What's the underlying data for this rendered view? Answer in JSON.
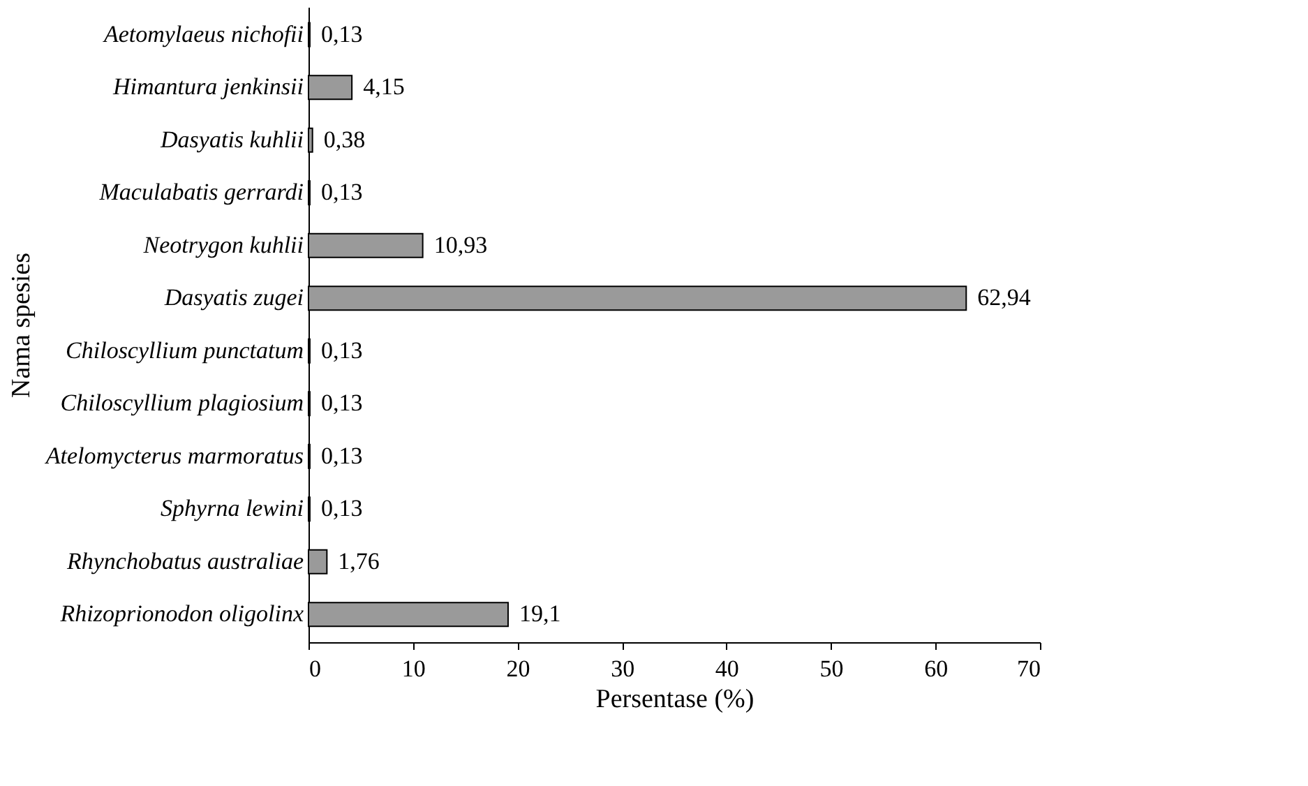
{
  "chart_data": {
    "type": "bar",
    "orientation": "horizontal",
    "xlabel": "Persentase (%)",
    "ylabel": "Nama spesies",
    "categories": [
      "Aetomylaeus nichofii",
      "Himantura jenkinsii",
      "Dasyatis kuhlii",
      "Maculabatis gerrardi",
      "Neotrygon kuhlii",
      "Dasyatis zugei",
      "Chiloscyllium punctatum",
      "Chiloscyllium plagiosium",
      "Atelomycterus marmoratus",
      "Sphyrna lewini",
      "Rhynchobatus australiae",
      "Rhizoprionodon oligolinx"
    ],
    "values": [
      0.13,
      4.15,
      0.38,
      0.13,
      10.93,
      62.94,
      0.13,
      0.13,
      0.13,
      0.13,
      1.76,
      19.1
    ],
    "value_labels": [
      "0,13",
      "4,15",
      "0,38",
      "0,13",
      "10,93",
      "62,94",
      "0,13",
      "0,13",
      "0,13",
      "0,13",
      "1,76",
      "19,1"
    ],
    "color": "#9a9a9a",
    "xlim": [
      0,
      70
    ],
    "xticks": [
      0,
      10,
      20,
      30,
      40,
      50,
      60,
      70
    ]
  }
}
